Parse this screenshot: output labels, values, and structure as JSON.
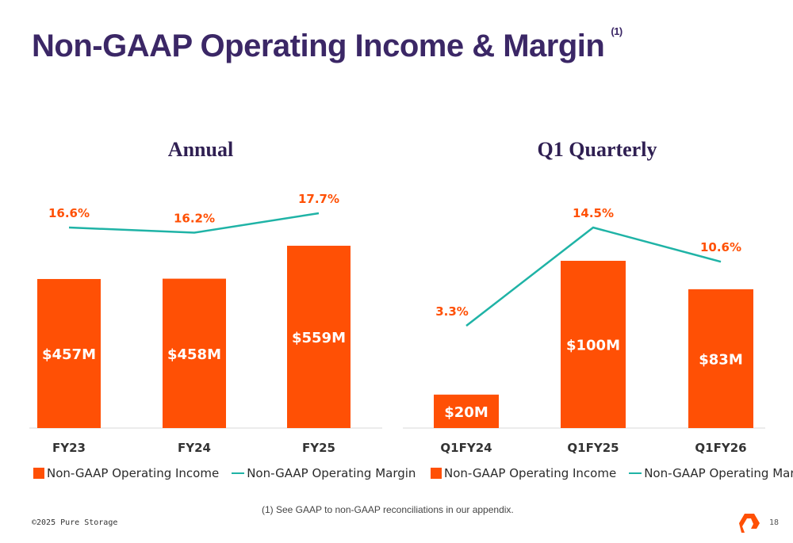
{
  "slide": {
    "title": "Non-GAAP Operating Income & Margin",
    "title_note": "(1)",
    "footnote": "(1) See GAAP to non-GAAP reconciliations in our appendix.",
    "copyright": "©2025 Pure Storage",
    "page_number": "18"
  },
  "colors": {
    "bar": "#ff5005",
    "line": "#1fb3a6",
    "label_orange": "#ff5005",
    "title": "#3b2766"
  },
  "chart_data": [
    {
      "type": "bar",
      "title": "Annual",
      "categories": [
        "FY23",
        "FY24",
        "FY25"
      ],
      "series": [
        {
          "name": "Non-GAAP Operating Income",
          "type": "bar",
          "values": [
            457,
            458,
            559
          ],
          "labels": [
            "$457M",
            "$458M",
            "$559M"
          ]
        },
        {
          "name": "Non-GAAP Operating Margin",
          "type": "line",
          "values": [
            16.6,
            16.2,
            17.7
          ],
          "labels": [
            "16.6%",
            "16.2%",
            "17.7%"
          ]
        }
      ],
      "legend": [
        "Non-GAAP Operating Income",
        "Non-GAAP Operating Margin"
      ],
      "legend_position": "bottom"
    },
    {
      "type": "bar",
      "title": "Q1 Quarterly",
      "categories": [
        "Q1FY24",
        "Q1FY25",
        "Q1FY26"
      ],
      "series": [
        {
          "name": "Non-GAAP Operating Income",
          "type": "bar",
          "values": [
            20,
            100,
            83
          ],
          "labels": [
            "$20M",
            "$100M",
            "$83M"
          ]
        },
        {
          "name": "Non-GAAP Operating Margin",
          "type": "line",
          "values": [
            3.3,
            14.5,
            10.6
          ],
          "labels": [
            "3.3%",
            "14.5%",
            "10.6%"
          ]
        }
      ],
      "legend": [
        "Non-GAAP Operating Income",
        "Non-GAAP Operating Margin"
      ],
      "legend_position": "bottom"
    }
  ]
}
